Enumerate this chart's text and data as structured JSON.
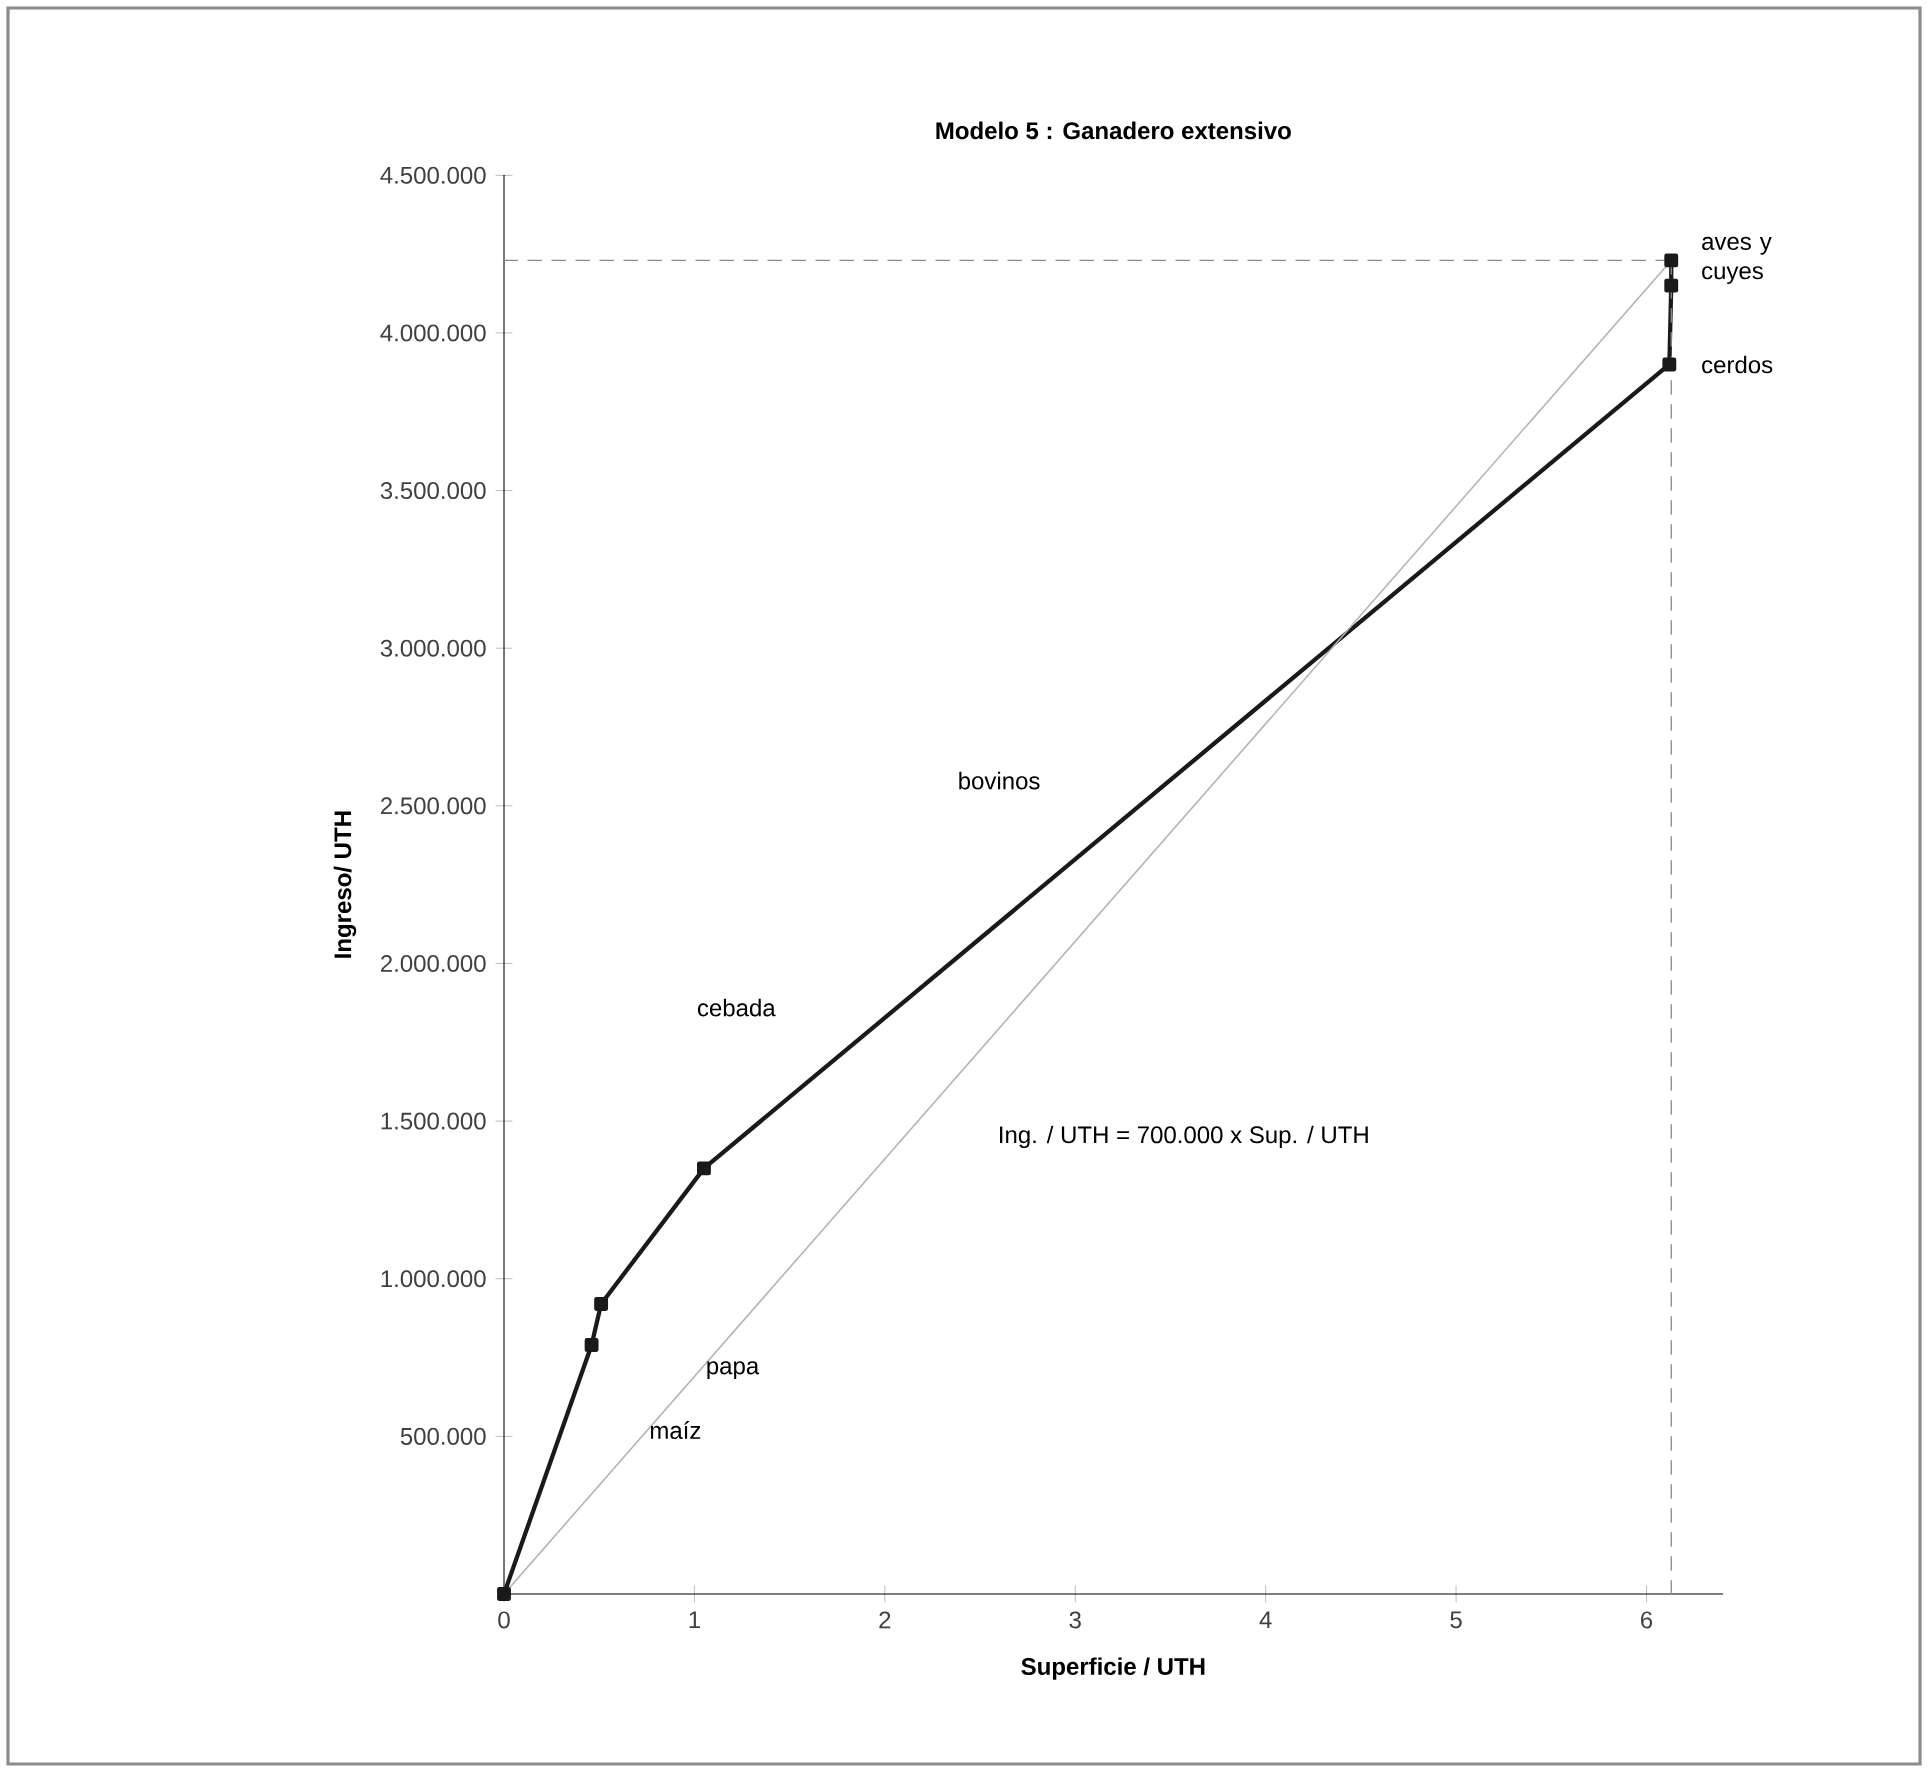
{
  "chart_data": {
    "type": "line",
    "title": "Modelo 5 : Ganadero extensivo",
    "xlabel": "Superficie / UTH",
    "ylabel": "Ingreso/ UTH",
    "series": [
      {
        "x": [
          0,
          0.46,
          0.51,
          1.05,
          6.12,
          6.13,
          6.13
        ],
        "values": [
          0,
          790000,
          920000,
          1350000,
          3900000,
          4150000,
          4230000
        ],
        "color": "#1a1a1a",
        "marker": "square",
        "line_style": "solid"
      },
      {
        "x": [
          0,
          6.13
        ],
        "values": [
          0,
          4230000
        ],
        "color": "#b4b4b4",
        "marker": "none",
        "line_style": "solid"
      }
    ],
    "xlim": [
      0,
      6.4
    ],
    "ylim": [
      0,
      4500000
    ],
    "xticks": [
      0,
      1,
      2,
      3,
      4,
      5,
      6
    ],
    "yticks": [
      {
        "value": 500000,
        "label": "500.000"
      },
      {
        "value": 1000000,
        "label": "1.000.000"
      },
      {
        "value": 1500000,
        "label": "1.500.000"
      },
      {
        "value": 2000000,
        "label": "2.000.000"
      },
      {
        "value": 2500000,
        "label": "2.500.000"
      },
      {
        "value": 3000000,
        "label": "3.000.000"
      },
      {
        "value": 3500000,
        "label": "3.500.000"
      },
      {
        "value": 4000000,
        "label": "4.000.000"
      },
      {
        "value": 4500000,
        "label": "4.500.000"
      }
    ],
    "ref_lines": [
      {
        "axis": "y",
        "value": 4230000,
        "color": "#8c8c8c",
        "line_style": "dashed"
      },
      {
        "axis": "x",
        "value": 6.13,
        "color": "#8c8c8c",
        "line_style": "dashed"
      }
    ],
    "annotations": [
      "maíz",
      "papa",
      "cebada",
      "bovinos",
      {
        "text": "cerdos",
        "x": 6.13,
        "y": 3900000
      },
      {
        "text": "aves y cuyes",
        "x": 6.13,
        "y": 4230000
      },
      "Ing. / UTH = 700.000 x Sup. / UTH"
    ],
    "grid": false
  }
}
